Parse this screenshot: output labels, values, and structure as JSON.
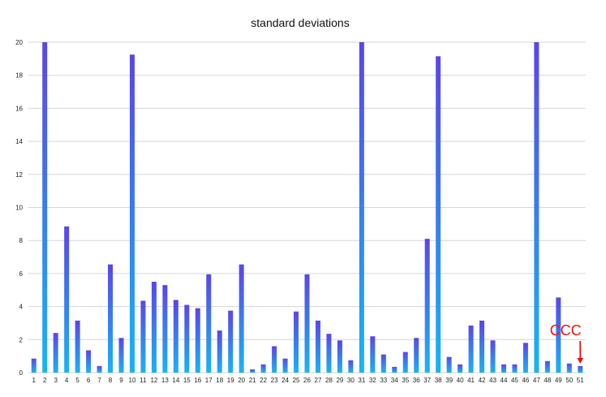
{
  "chart_data": {
    "type": "bar",
    "title": "standard deviations",
    "xlabel": "",
    "ylabel": "",
    "ylim": [
      0,
      20
    ],
    "yticks": [
      0,
      2,
      4,
      6,
      8,
      10,
      12,
      14,
      16,
      18,
      20
    ],
    "grid": true,
    "categories": [
      "1",
      "2",
      "3",
      "4",
      "5",
      "6",
      "7",
      "8",
      "9",
      "10",
      "11",
      "12",
      "13",
      "14",
      "15",
      "16",
      "17",
      "18",
      "19",
      "20",
      "21",
      "22",
      "23",
      "24",
      "25",
      "26",
      "27",
      "28",
      "29",
      "30",
      "31",
      "32",
      "33",
      "34",
      "35",
      "36",
      "37",
      "38",
      "39",
      "40",
      "41",
      "42",
      "43",
      "44",
      "45",
      "46",
      "47",
      "48",
      "49",
      "50",
      "51"
    ],
    "values": [
      0.85,
      20,
      2.4,
      8.85,
      3.15,
      1.35,
      0.4,
      6.55,
      2.1,
      19.25,
      4.35,
      5.5,
      5.3,
      4.4,
      4.1,
      3.9,
      5.95,
      2.55,
      3.75,
      6.55,
      0.2,
      0.5,
      1.6,
      0.85,
      3.7,
      5.95,
      3.15,
      2.35,
      1.95,
      0.75,
      20,
      2.2,
      1.1,
      0.35,
      1.25,
      2.1,
      8.1,
      19.15,
      0.95,
      0.5,
      2.85,
      3.15,
      1.95,
      0.5,
      0.5,
      1.8,
      20,
      0.7,
      4.55,
      0.55,
      0.4
    ],
    "colors": {
      "bar_top": "#5b45e8",
      "bar_bottom": "#17b4f5",
      "grid": "#d6d6d6",
      "annotation": "#ee1111"
    },
    "annotation": {
      "text": "CCC",
      "target_category": "51",
      "arrow": true
    }
  }
}
